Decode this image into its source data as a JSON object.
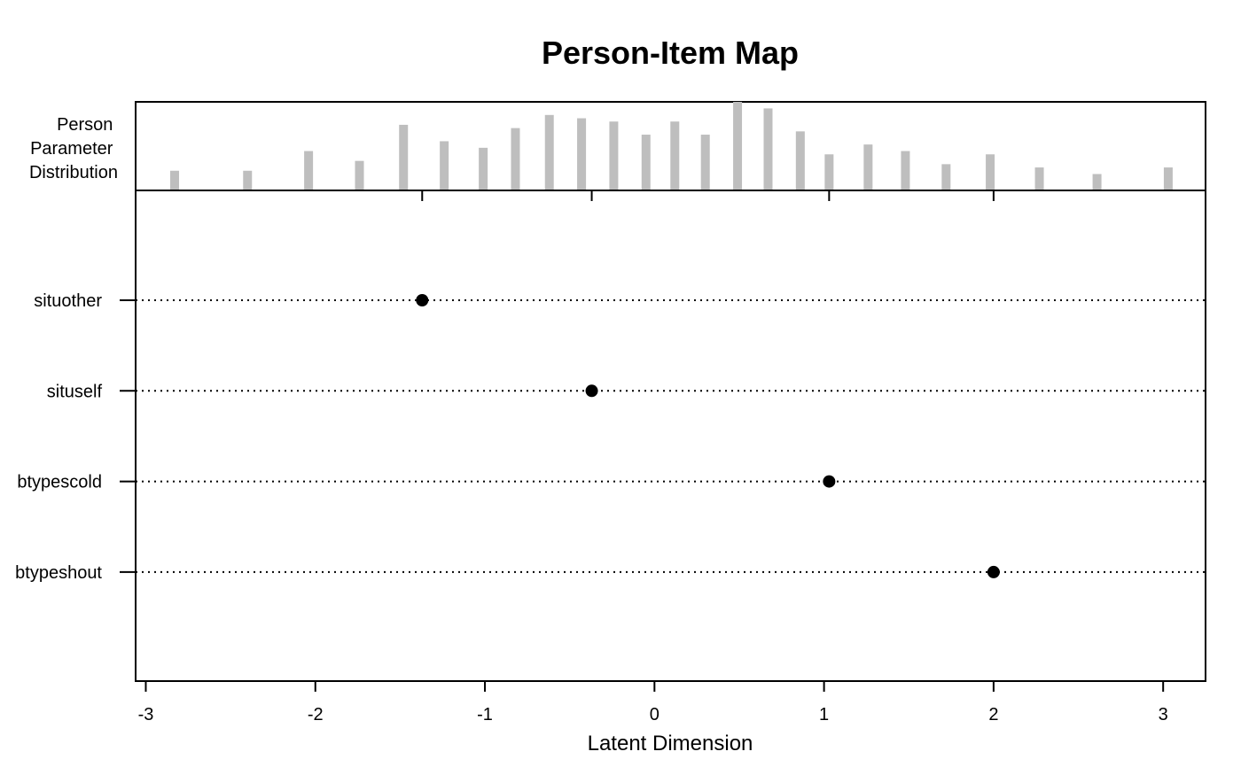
{
  "chart_data": {
    "type": "scatter",
    "title": "Person-Item Map",
    "xlabel": "Latent Dimension",
    "xlim": [
      -3.06,
      3.25
    ],
    "x_ticks": [
      -3,
      -2,
      -1,
      0,
      1,
      2,
      3
    ],
    "x_tick_labels": [
      "-3",
      "-2",
      "-1",
      "0",
      "1",
      "2",
      "3"
    ],
    "person_distribution": {
      "label_lines": [
        "Person",
        "Parameter",
        "Distribution"
      ],
      "type": "bar",
      "color": "#bebebe",
      "x": [
        -2.83,
        -2.4,
        -2.04,
        -1.74,
        -1.48,
        -1.24,
        -1.01,
        -0.82,
        -0.62,
        -0.43,
        -0.24,
        -0.05,
        0.12,
        0.3,
        0.49,
        0.67,
        0.86,
        1.03,
        1.26,
        1.48,
        1.72,
        1.98,
        2.27,
        2.61,
        3.03
      ],
      "counts": [
        6,
        6,
        12,
        9,
        20,
        15,
        13,
        19,
        23,
        22,
        21,
        17,
        21,
        17,
        27,
        25,
        18,
        11,
        14,
        12,
        8,
        11,
        7,
        5,
        7
      ]
    },
    "items": {
      "labels": [
        "situother",
        "situself",
        "btypescold",
        "btypeshout"
      ],
      "x": [
        -1.37,
        -0.37,
        1.03,
        2.0
      ],
      "point_color": "#000000",
      "line_style": "dotted"
    },
    "legend": "none",
    "grid": false
  }
}
